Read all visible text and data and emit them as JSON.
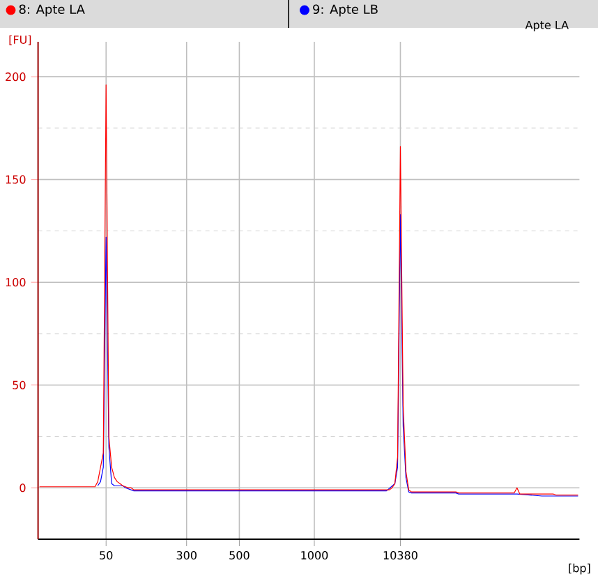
{
  "chart_data": {
    "type": "line",
    "title": "Apte LA",
    "xlabel": "[bp]",
    "ylabel": "[FU]",
    "legend": "top",
    "grid": true,
    "marker": "none",
    "line_style": "solid",
    "ylim": [
      -25,
      217
    ],
    "yticks": [
      0,
      50,
      100,
      150,
      200
    ],
    "categories": [
      null,
      null,
      null,
      null,
      null,
      null,
      null,
      null,
      null,
      null,
      null,
      null,
      null,
      null,
      null,
      null,
      null,
      null,
      null,
      null,
      null,
      null,
      null,
      null,
      "50",
      null,
      null,
      null,
      null,
      null,
      null,
      null,
      null,
      null,
      null,
      null,
      null,
      null,
      null,
      null,
      null,
      null,
      null,
      null,
      null,
      null,
      null,
      null,
      null,
      null,
      null,
      null,
      null,
      "300",
      null,
      null,
      null,
      null,
      null,
      null,
      null,
      null,
      null,
      null,
      null,
      null,
      null,
      null,
      null,
      null,
      null,
      null,
      "500",
      null,
      null,
      null,
      null,
      null,
      null,
      null,
      null,
      null,
      null,
      null,
      null,
      null,
      null,
      null,
      null,
      null,
      null,
      null,
      null,
      null,
      null,
      null,
      null,
      null,
      null,
      "1000",
      null,
      null,
      null,
      null,
      null,
      null,
      null,
      null,
      null,
      null,
      null,
      null,
      null,
      null,
      null,
      null,
      null,
      null,
      null,
      null,
      null,
      null,
      null,
      null,
      null,
      null,
      null,
      null,
      null,
      null,
      "10380",
      null,
      null,
      null,
      null,
      null,
      null,
      null,
      null,
      null,
      null,
      null,
      null,
      null,
      null,
      null,
      null,
      null,
      null,
      null,
      null,
      null,
      null,
      null,
      null,
      null,
      null,
      null,
      null,
      null,
      null,
      null,
      null,
      null,
      null,
      null,
      null,
      null,
      null,
      null,
      null,
      null,
      null,
      null,
      null,
      null,
      null,
      null,
      null,
      null,
      null,
      null,
      null,
      null,
      null,
      null,
      null,
      null,
      null,
      null,
      null,
      null,
      null,
      null,
      null
    ],
    "series": [
      {
        "name": "8: Apte LA",
        "color": "#ff0000",
        "values": [
          0.5,
          0.5,
          0.5,
          0.5,
          0.5,
          0.5,
          0.5,
          0.5,
          0.5,
          0.5,
          0.5,
          0.5,
          0.5,
          0.5,
          0.5,
          0.5,
          0.5,
          0.5,
          0.5,
          0.5,
          0.5,
          3,
          10,
          17,
          196,
          25,
          10,
          5,
          3,
          2,
          1,
          0.5,
          0,
          0,
          -1,
          -1,
          -1,
          -1,
          -1,
          -1,
          -1,
          -1,
          -1,
          -1,
          -1,
          -1,
          -1,
          -1,
          -1,
          -1,
          -1,
          -1,
          -1,
          -1,
          -1,
          -1,
          -1,
          -1,
          -1,
          -1,
          -1,
          -1,
          -1,
          -1,
          -1,
          -1,
          -1,
          -1,
          -1,
          -1,
          -1,
          -1,
          -1,
          -1,
          -1,
          -1,
          -1,
          -1,
          -1,
          -1,
          -1,
          -1,
          -1,
          -1,
          -1,
          -1,
          -1,
          -1,
          -1,
          -1,
          -1,
          -1,
          -1,
          -1,
          -1,
          -1,
          -1,
          -1,
          -1,
          -1,
          -1,
          -1,
          -1,
          -1,
          -1,
          -1,
          -1,
          -1,
          -1,
          -1,
          -1,
          -1,
          -1,
          -1,
          -1,
          -1,
          -1,
          -1,
          -1,
          -1,
          -1,
          -1,
          -1,
          -1,
          -1,
          -1,
          -1,
          0,
          2,
          15,
          166,
          40,
          8,
          -1,
          -2,
          -2,
          -2,
          -2,
          -2,
          -2,
          -2,
          -2,
          -2,
          -2,
          -2,
          -2,
          -2,
          -2,
          -2,
          -2,
          -2,
          -2.5,
          -2.5,
          -2.5,
          -2.5,
          -2.5,
          -2.5,
          -2.5,
          -2.5,
          -2.5,
          -2.5,
          -2.5,
          -2.5,
          -2.5,
          -2.5,
          -2.5,
          -2.5,
          -2.5,
          -2.5,
          -2.5,
          -2.5,
          -2.5,
          0,
          -3,
          -3,
          -3,
          -3,
          -3,
          -3,
          -3,
          -3,
          -3,
          -3,
          -3,
          -3,
          -3,
          -3.5,
          -3.5,
          -3.5,
          -3.5,
          -3.5,
          -3.5,
          -3.5,
          -3.5,
          -3.5
        ]
      },
      {
        "name": "9: Apte LB",
        "color": "#0000ff",
        "values": [
          null,
          null,
          null,
          null,
          null,
          null,
          null,
          null,
          null,
          null,
          null,
          null,
          null,
          null,
          null,
          null,
          null,
          null,
          null,
          null,
          null,
          1,
          3,
          10,
          122,
          20,
          2,
          1,
          1,
          1,
          1,
          0,
          null,
          null,
          -1.5,
          -1.5,
          -1.5,
          -1.5,
          -1.5,
          -1.5,
          -1.5,
          -1.5,
          -1.5,
          -1.5,
          -1.5,
          -1.5,
          -1.5,
          -1.5,
          -1.5,
          -1.5,
          -1.5,
          -1.5,
          -1.5,
          -1.5,
          -1.5,
          -1.5,
          -1.5,
          -1.5,
          -1.5,
          -1.5,
          -1.5,
          -1.5,
          -1.5,
          -1.5,
          -1.5,
          -1.5,
          -1.5,
          -1.5,
          -1.5,
          -1.5,
          -1.5,
          -1.5,
          -1.5,
          -1.5,
          -1.5,
          -1.5,
          -1.5,
          -1.5,
          -1.5,
          -1.5,
          -1.5,
          -1.5,
          -1.5,
          -1.5,
          -1.5,
          -1.5,
          -1.5,
          -1.5,
          -1.5,
          -1.5,
          -1.5,
          -1.5,
          -1.5,
          -1.5,
          -1.5,
          -1.5,
          -1.5,
          -1.5,
          -1.5,
          -1.5,
          -1.5,
          -1.5,
          -1.5,
          -1.5,
          -1.5,
          -1.5,
          -1.5,
          -1.5,
          -1.5,
          -1.5,
          -1.5,
          -1.5,
          -1.5,
          -1.5,
          -1.5,
          -1.5,
          -1.5,
          -1.5,
          -1.5,
          -1.5,
          -1.5,
          -1.5,
          -1.5,
          -1.5,
          -1.5,
          -1.5,
          null,
          null,
          2,
          10,
          133,
          30,
          5,
          -2,
          -2.5,
          -2.5,
          -2.5,
          -2.5,
          -2.5,
          -2.5,
          -2.5,
          -2.5,
          -2.5,
          -2.5,
          -2.5,
          -2.5,
          -2.5,
          -2.5,
          -2.5,
          -2.5,
          -2.5,
          -3,
          -3,
          -3,
          -3,
          -3,
          -3,
          -3,
          -3,
          -3,
          -3,
          -3,
          -3,
          -3,
          -3,
          -3,
          -3,
          -3,
          -3,
          -3,
          -3,
          -3,
          -3,
          null,
          null,
          null,
          null,
          null,
          null,
          null,
          null,
          -4,
          -4,
          -4,
          -4,
          -4,
          -4,
          -4,
          -4,
          -4,
          -4,
          -4,
          -4,
          -4,
          -4
        ]
      }
    ]
  }
}
